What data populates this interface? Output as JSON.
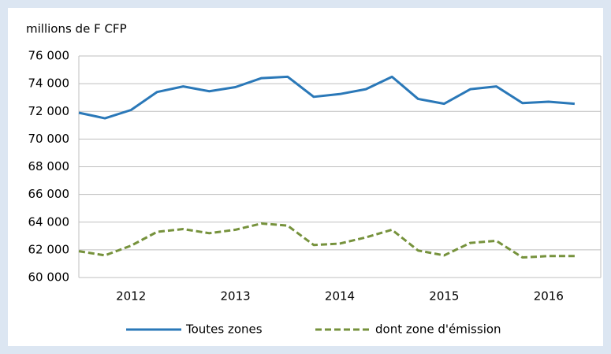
{
  "chart_data": {
    "type": "line",
    "y_label": "millions de F CFP",
    "categories": [
      "2012",
      null,
      null,
      null,
      "2013",
      null,
      null,
      null,
      "2014",
      null,
      null,
      null,
      "2015",
      null,
      null,
      null,
      "2016",
      null,
      null,
      null
    ],
    "series": [
      {
        "name": "Toutes zones",
        "color": "#2a78b8",
        "dash": false,
        "values": [
          71900,
          71500,
          72100,
          73400,
          73800,
          73450,
          73750,
          74400,
          74500,
          73050,
          73250,
          73600,
          74500,
          72900,
          72550,
          73600,
          73800,
          72600,
          72700,
          72550
        ]
      },
      {
        "name": "dont zone d'émission",
        "color": "#76923c",
        "dash": true,
        "values": [
          61900,
          61600,
          62300,
          63300,
          63500,
          63200,
          63450,
          63900,
          63750,
          62350,
          62450,
          62900,
          63450,
          61950,
          61600,
          62500,
          62650,
          61450,
          61550,
          61550
        ]
      }
    ],
    "ylim": [
      60000,
      76000
    ],
    "yticks": [
      {
        "value": 60000,
        "label": "60 000"
      },
      {
        "value": 62000,
        "label": "62 000"
      },
      {
        "value": 64000,
        "label": "64 000"
      },
      {
        "value": 66000,
        "label": "66 000"
      },
      {
        "value": 68000,
        "label": "68 000"
      },
      {
        "value": 70000,
        "label": "70 000"
      },
      {
        "value": 72000,
        "label": "72 000"
      },
      {
        "value": 74000,
        "label": "74 000"
      },
      {
        "value": 76000,
        "label": "76 000"
      }
    ],
    "grid": true,
    "legend": "bottom"
  }
}
